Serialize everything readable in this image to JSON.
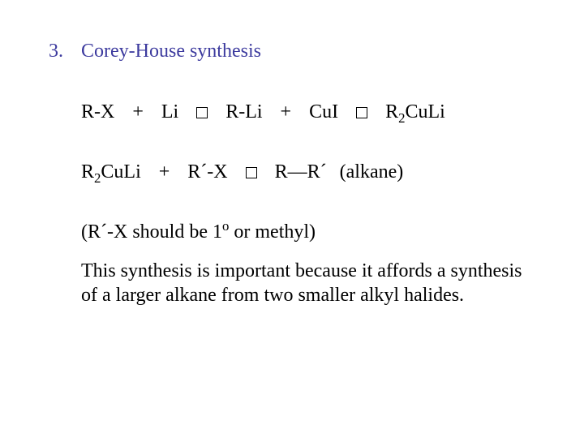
{
  "colors": {
    "heading": "#3c3a9e",
    "item_number": "#3c3a9e",
    "body_text": "#000000",
    "background": "#ffffff"
  },
  "fonts": {
    "family": "Times New Roman",
    "heading_size_pt": 18,
    "body_size_pt": 18
  },
  "item_number": "3.",
  "heading": "Corey-House synthesis",
  "line1": {
    "t1": "R-X",
    "plus1": "+",
    "t2": "Li",
    "t3": "R-Li",
    "plus2": "+",
    "t4": "CuI",
    "t5a": "R",
    "t5_sub": "2",
    "t5b": "CuLi"
  },
  "line2": {
    "t1a": "R",
    "t1_sub": "2",
    "t1b": "CuLi",
    "plus1": "+",
    "t2": "R´-X",
    "t3": "R—R´",
    "paren": "(alkane)"
  },
  "note": {
    "open": "(R´-X should be 1",
    "sup": "o",
    "close": " or methyl)"
  },
  "para": "This synthesis is important because it affords a synthesis of a larger alkane from two smaller alkyl halides."
}
